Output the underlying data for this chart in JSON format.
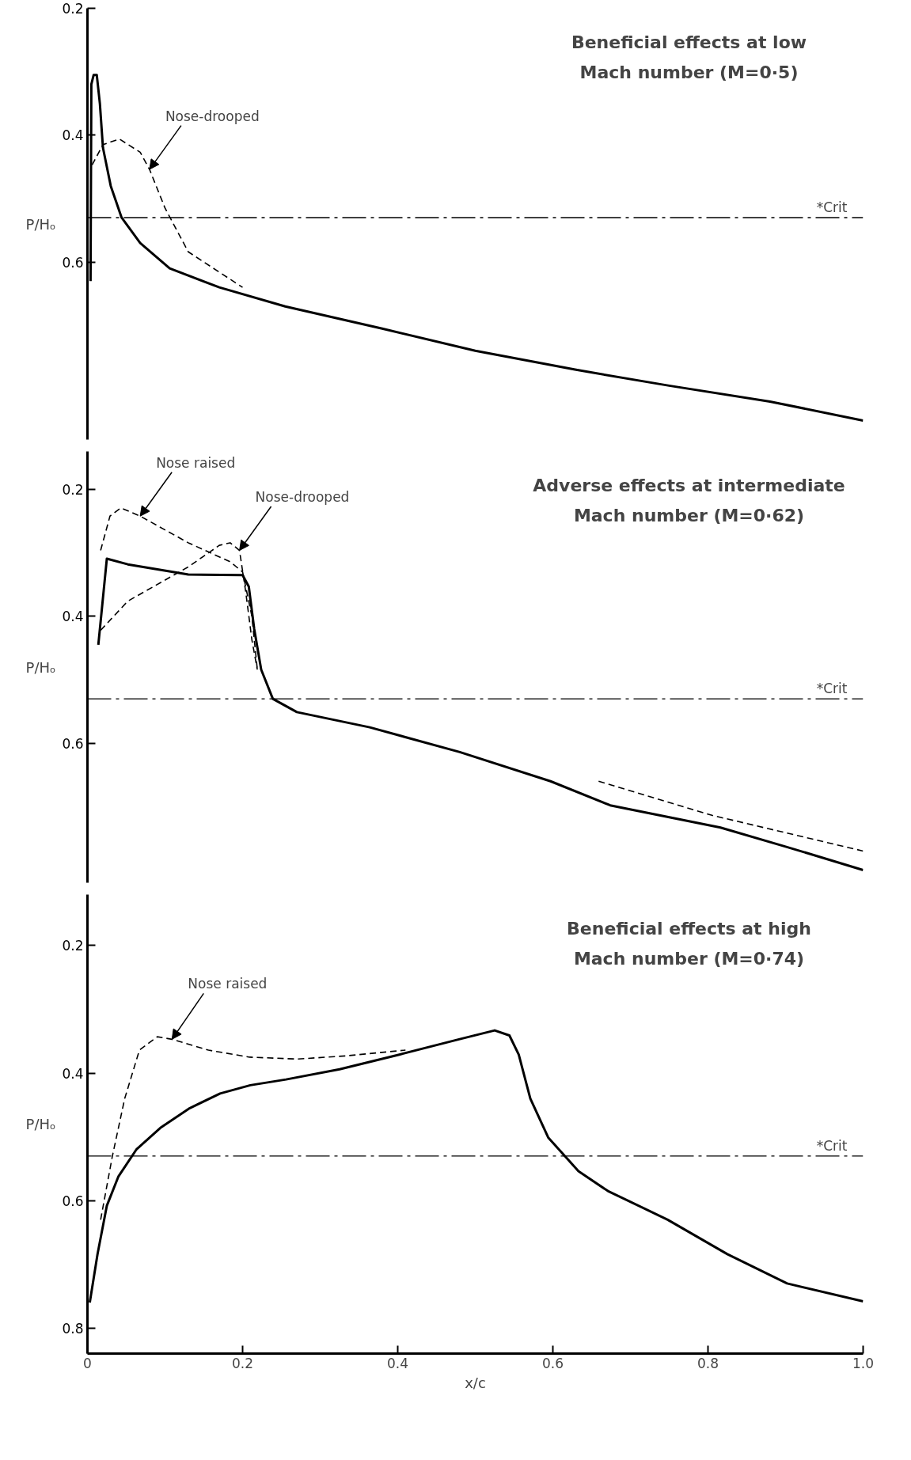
{
  "chart_data": [
    {
      "type": "line",
      "title": "Beneficial effects at low\nMach number (M=0·5)",
      "ylabel": "P/Hₒ",
      "xlim": [
        0,
        1
      ],
      "ylim": [
        0.88,
        0.2
      ],
      "yticks": [
        0.2,
        0.4,
        0.6
      ],
      "tick_labels": "y",
      "series": [
        {
          "color": "#000000",
          "line_style": "solid",
          "x": [
            0.004,
            0.005,
            0.008,
            0.012,
            0.016,
            0.02,
            0.03,
            0.044,
            0.068,
            0.106,
            0.17,
            0.255,
            0.38,
            0.5,
            0.63,
            0.75,
            0.88,
            1.0
          ],
          "values": [
            0.63,
            0.32,
            0.305,
            0.305,
            0.35,
            0.42,
            0.48,
            0.53,
            0.57,
            0.61,
            0.64,
            0.67,
            0.705,
            0.74,
            0.77,
            0.795,
            0.82,
            0.85
          ]
        },
        {
          "color": "#000000",
          "line_style": "dashed",
          "x": [
            0.006,
            0.02,
            0.041,
            0.068,
            0.08,
            0.1,
            0.13,
            0.2
          ],
          "values": [
            0.447,
            0.415,
            0.406,
            0.427,
            0.454,
            0.515,
            0.584,
            0.64
          ]
        }
      ],
      "ref_lines": [
        {
          "axis": "y",
          "value": 0.53,
          "label": "*Crit"
        }
      ],
      "annotations": [
        {
          "text": "Nose-drooped",
          "x": 0.08,
          "y": 0.454
        }
      ]
    },
    {
      "type": "line",
      "title": "Adverse effects at intermediate\nMach number (M=0·62)",
      "ylabel": "P/Hₒ",
      "xlim": [
        0,
        1
      ],
      "ylim": [
        0.82,
        0.14
      ],
      "yticks": [
        0.2,
        0.4,
        0.6
      ],
      "tick_labels": "y",
      "series": [
        {
          "color": "#000000",
          "line_style": "solid",
          "x": [
            0.014,
            0.025,
            0.052,
            0.13,
            0.2,
            0.208,
            0.215,
            0.224,
            0.239,
            0.27,
            0.364,
            0.48,
            0.597,
            0.674,
            0.816,
            0.9,
            1.0
          ],
          "values": [
            0.445,
            0.309,
            0.318,
            0.334,
            0.335,
            0.353,
            0.42,
            0.484,
            0.53,
            0.551,
            0.575,
            0.614,
            0.66,
            0.698,
            0.733,
            0.763,
            0.8
          ]
        },
        {
          "color": "#000000",
          "line_style": "dashed",
          "x": [
            0.017,
            0.029,
            0.043,
            0.068,
            0.13,
            0.184,
            0.2,
            0.212,
            0.219
          ],
          "values": [
            0.296,
            0.242,
            0.229,
            0.242,
            0.284,
            0.314,
            0.33,
            0.4,
            0.484
          ]
        },
        {
          "color": "#000000",
          "line_style": "dashed",
          "x": [
            0.017,
            0.052,
            0.13,
            0.17,
            0.184,
            0.196,
            0.204,
            0.212,
            0.219
          ],
          "values": [
            0.422,
            0.376,
            0.322,
            0.288,
            0.284,
            0.296,
            0.361,
            0.437,
            0.484
          ]
        },
        {
          "color": "#000000",
          "line_style": "dashed",
          "x": [
            0.659,
            0.806,
            1.0
          ],
          "values": [
            0.66,
            0.714,
            0.77
          ]
        }
      ],
      "ref_lines": [
        {
          "axis": "y",
          "value": 0.53,
          "label": "*Crit"
        }
      ],
      "annotations": [
        {
          "text": "Nose raised",
          "x": 0.068,
          "y": 0.242
        },
        {
          "text": "Nose-drooped",
          "x": 0.196,
          "y": 0.296
        }
      ]
    },
    {
      "type": "line",
      "title": "Beneficial effects at high\nMach number (M=0·74)",
      "ylabel": "P/Hₒ",
      "xlabel": "x/c",
      "xlim": [
        0,
        1
      ],
      "ylim": [
        0.84,
        0.12
      ],
      "xticks": [
        0,
        0.2,
        0.4,
        0.6,
        0.8,
        {
          "value": 1.0,
          "label": "1.0"
        }
      ],
      "yticks": [
        0.2,
        0.4,
        0.6,
        0.8
      ],
      "series": [
        {
          "color": "#000000",
          "line_style": "solid",
          "x": [
            0.003,
            0.013,
            0.025,
            0.04,
            0.063,
            0.094,
            0.132,
            0.171,
            0.21,
            0.256,
            0.325,
            0.402,
            0.479,
            0.525,
            0.544,
            0.556,
            0.571,
            0.594,
            0.633,
            0.671,
            0.748,
            0.825,
            0.902,
            1.0
          ],
          "values": [
            0.76,
            0.684,
            0.608,
            0.562,
            0.52,
            0.486,
            0.455,
            0.432,
            0.419,
            0.41,
            0.394,
            0.371,
            0.347,
            0.333,
            0.341,
            0.371,
            0.44,
            0.501,
            0.554,
            0.585,
            0.63,
            0.684,
            0.73,
            0.758
          ]
        },
        {
          "color": "#000000",
          "line_style": "dashed",
          "x": [
            0.017,
            0.032,
            0.048,
            0.067,
            0.09,
            0.109,
            0.156,
            0.209,
            0.271,
            0.333,
            0.41
          ],
          "values": [
            0.63,
            0.531,
            0.44,
            0.364,
            0.343,
            0.347,
            0.364,
            0.375,
            0.378,
            0.373,
            0.364
          ]
        }
      ],
      "ref_lines": [
        {
          "axis": "y",
          "value": 0.53,
          "label": "*Crit"
        }
      ],
      "annotations": [
        {
          "text": "Nose raised",
          "x": 0.109,
          "y": 0.347
        }
      ]
    }
  ]
}
